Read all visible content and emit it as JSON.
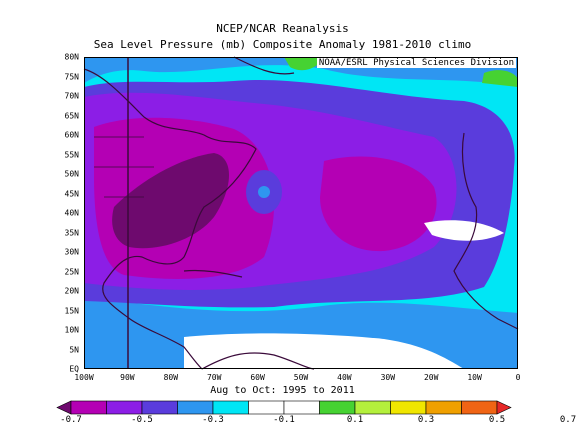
{
  "title": "NCEP/NCAR Reanalysis",
  "subtitle": "Sea Level Pressure (mb) Composite Anomaly 1981-2010 climo",
  "credit": "NOAA/ESRL Physical Sciences Division",
  "period": "Aug to Oct: 1995 to 2011",
  "lat_labels": [
    "80N",
    "75N",
    "70N",
    "65N",
    "60N",
    "55N",
    "50N",
    "45N",
    "40N",
    "35N",
    "30N",
    "25N",
    "20N",
    "15N",
    "10N",
    "5N",
    "EQ"
  ],
  "lon_labels": [
    "100W",
    "90W",
    "80W",
    "70W",
    "60W",
    "50W",
    "40W",
    "30W",
    "20W",
    "10W",
    "0"
  ],
  "colorbar": {
    "labels": [
      "-0.7",
      "-0.5",
      "-0.3",
      "-0.1",
      "0.1",
      "0.3",
      "0.5",
      "0.7"
    ],
    "colors": [
      "#6e0a6e",
      "#b400b4",
      "#8c1ee6",
      "#5a3cdc",
      "#2e96f0",
      "#00e6f5",
      "#ffffff",
      "#ffffff",
      "#46d232",
      "#b4f03c",
      "#f0e600",
      "#f0a000",
      "#f06414",
      "#e62828"
    ]
  },
  "map": {
    "domain": {
      "lon": [
        -100,
        0
      ],
      "lat": [
        0,
        80
      ]
    },
    "land_color": "#5a1a4a"
  }
}
